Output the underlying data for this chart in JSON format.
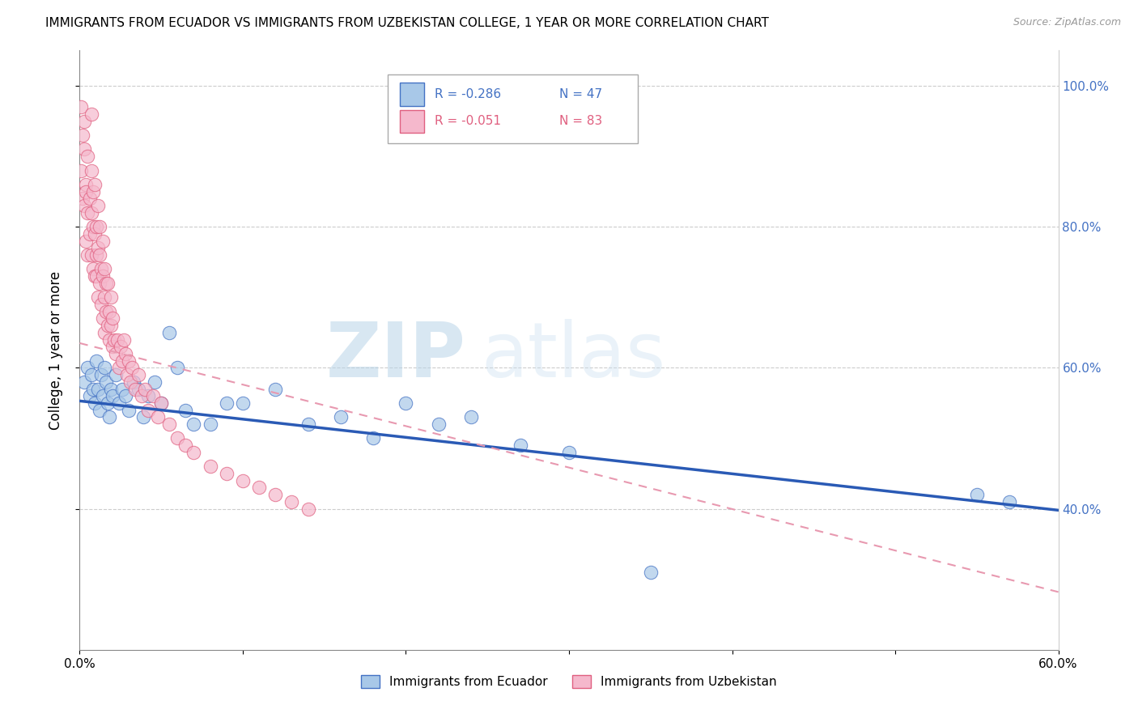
{
  "title": "IMMIGRANTS FROM ECUADOR VS IMMIGRANTS FROM UZBEKISTAN COLLEGE, 1 YEAR OR MORE CORRELATION CHART",
  "source": "Source: ZipAtlas.com",
  "ylabel": "College, 1 year or more",
  "watermark_zip": "ZIP",
  "watermark_atlas": "atlas",
  "legend_ecuador_R": "R = -0.286",
  "legend_ecuador_N": "N = 47",
  "legend_uzbekistan_R": "R = -0.051",
  "legend_uzbekistan_N": "N = 83",
  "color_ecuador_fill": "#a8c8e8",
  "color_ecuador_edge": "#4472c4",
  "color_uzbekistan_fill": "#f5b8cc",
  "color_uzbekistan_edge": "#e06080",
  "color_ecuador_line": "#2a5ab5",
  "color_uzbekistan_line": "#e899b0",
  "xlim": [
    0.0,
    0.6
  ],
  "ylim": [
    0.2,
    1.05
  ],
  "right_ytick_vals": [
    0.4,
    0.6,
    0.8,
    1.0
  ],
  "right_ytick_labels": [
    "40.0%",
    "60.0%",
    "80.0%",
    "100.0%"
  ],
  "ecuador_x": [
    0.003,
    0.005,
    0.006,
    0.007,
    0.008,
    0.009,
    0.01,
    0.011,
    0.012,
    0.013,
    0.014,
    0.015,
    0.016,
    0.017,
    0.018,
    0.019,
    0.02,
    0.022,
    0.024,
    0.026,
    0.028,
    0.03,
    0.033,
    0.036,
    0.039,
    0.042,
    0.046,
    0.05,
    0.055,
    0.06,
    0.065,
    0.07,
    0.08,
    0.09,
    0.1,
    0.12,
    0.14,
    0.16,
    0.18,
    0.2,
    0.22,
    0.24,
    0.27,
    0.3,
    0.35,
    0.55,
    0.57
  ],
  "ecuador_y": [
    0.58,
    0.6,
    0.56,
    0.59,
    0.57,
    0.55,
    0.61,
    0.57,
    0.54,
    0.59,
    0.56,
    0.6,
    0.58,
    0.55,
    0.53,
    0.57,
    0.56,
    0.59,
    0.55,
    0.57,
    0.56,
    0.54,
    0.58,
    0.57,
    0.53,
    0.56,
    0.58,
    0.55,
    0.65,
    0.6,
    0.54,
    0.52,
    0.52,
    0.55,
    0.55,
    0.57,
    0.52,
    0.53,
    0.5,
    0.55,
    0.52,
    0.53,
    0.49,
    0.48,
    0.31,
    0.42,
    0.41
  ],
  "uzbekistan_x": [
    0.001,
    0.001,
    0.002,
    0.002,
    0.003,
    0.003,
    0.003,
    0.004,
    0.004,
    0.004,
    0.005,
    0.005,
    0.005,
    0.006,
    0.006,
    0.007,
    0.007,
    0.007,
    0.007,
    0.008,
    0.008,
    0.008,
    0.009,
    0.009,
    0.009,
    0.01,
    0.01,
    0.01,
    0.011,
    0.011,
    0.011,
    0.012,
    0.012,
    0.012,
    0.013,
    0.013,
    0.014,
    0.014,
    0.014,
    0.015,
    0.015,
    0.015,
    0.016,
    0.016,
    0.017,
    0.017,
    0.018,
    0.018,
    0.019,
    0.019,
    0.02,
    0.02,
    0.021,
    0.022,
    0.023,
    0.024,
    0.025,
    0.026,
    0.027,
    0.028,
    0.029,
    0.03,
    0.031,
    0.032,
    0.034,
    0.036,
    0.038,
    0.04,
    0.042,
    0.045,
    0.048,
    0.05,
    0.055,
    0.06,
    0.065,
    0.07,
    0.08,
    0.09,
    0.1,
    0.11,
    0.12,
    0.13,
    0.14
  ],
  "uzbekistan_y": [
    0.97,
    0.88,
    0.93,
    0.84,
    0.91,
    0.83,
    0.95,
    0.86,
    0.78,
    0.85,
    0.9,
    0.82,
    0.76,
    0.84,
    0.79,
    0.88,
    0.82,
    0.76,
    0.96,
    0.8,
    0.74,
    0.85,
    0.79,
    0.73,
    0.86,
    0.76,
    0.8,
    0.73,
    0.77,
    0.83,
    0.7,
    0.76,
    0.72,
    0.8,
    0.74,
    0.69,
    0.73,
    0.78,
    0.67,
    0.74,
    0.7,
    0.65,
    0.72,
    0.68,
    0.66,
    0.72,
    0.68,
    0.64,
    0.7,
    0.66,
    0.63,
    0.67,
    0.64,
    0.62,
    0.64,
    0.6,
    0.63,
    0.61,
    0.64,
    0.62,
    0.59,
    0.61,
    0.58,
    0.6,
    0.57,
    0.59,
    0.56,
    0.57,
    0.54,
    0.56,
    0.53,
    0.55,
    0.52,
    0.5,
    0.49,
    0.48,
    0.46,
    0.45,
    0.44,
    0.43,
    0.42,
    0.41,
    0.4
  ],
  "ecuador_line_x0": 0.0,
  "ecuador_line_y0": 0.553,
  "ecuador_line_x1": 0.6,
  "ecuador_line_y1": 0.398,
  "uzbekistan_line_x0": 0.0,
  "uzbekistan_line_y0": 0.635,
  "uzbekistan_line_x1": 0.6,
  "uzbekistan_line_y1": 0.282
}
